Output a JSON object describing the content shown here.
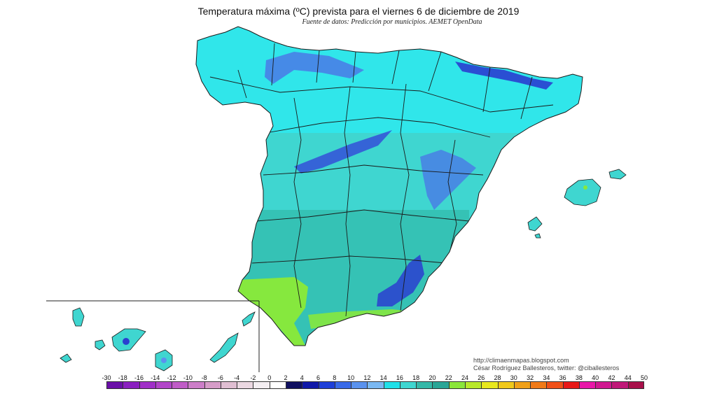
{
  "title": "Temperatura máxima (ºC) prevista para el viernes 6 de diciembre de 2019",
  "subtitle": "Fuente de datos: Predicción por municipios. AEMET OpenData",
  "credits": {
    "url": "http://climaenmapas.blogspot.com",
    "author": "César Rodríguez Ballesteros, twitter: @ciballesteros"
  },
  "map": {
    "colors": {
      "land_main": "#3fd6d0",
      "land_north": "#30e6ea",
      "land_south": "#35c2b5",
      "cold_high": "#2a3ed0",
      "cold_mid": "#4a79e6",
      "warm_coast": "#86e83e",
      "borders": "#1a1a1a"
    }
  },
  "scale": {
    "labels": [
      "-30",
      "-18",
      "-16",
      "-14",
      "-12",
      "-10",
      "-8",
      "-6",
      "-4",
      "-2",
      "0",
      "2",
      "4",
      "6",
      "8",
      "10",
      "12",
      "14",
      "16",
      "18",
      "20",
      "22",
      "24",
      "26",
      "28",
      "30",
      "32",
      "34",
      "36",
      "38",
      "40",
      "42",
      "44",
      "50"
    ],
    "colors": [
      "#6a0fa8",
      "#8a1fc0",
      "#a030c8",
      "#b245c9",
      "#c05cc7",
      "#cc7ec8",
      "#d69cc8",
      "#e0bed2",
      "#ebd8e2",
      "#f4eef2",
      "#ffffff",
      "#101060",
      "#1018a8",
      "#1e3fd8",
      "#3a6ae8",
      "#5a92ee",
      "#7ab8f2",
      "#20e0e8",
      "#3fd6d0",
      "#35b8a8",
      "#2aa596",
      "#8ae63a",
      "#b8e82a",
      "#e8e81e",
      "#f0c81a",
      "#f0a018",
      "#f07a18",
      "#f05018",
      "#e81818",
      "#e818a8",
      "#d01890",
      "#c01878",
      "#a8104a",
      "#8a1030"
    ]
  }
}
